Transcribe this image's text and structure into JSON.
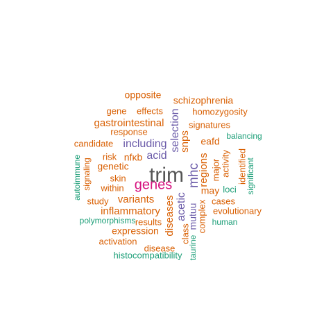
{
  "colors": {
    "dark": "#555555",
    "magenta": "#d6127f",
    "purple": "#6a5aa8",
    "orange": "#d95f02",
    "green": "#1b9e77"
  },
  "words": [
    {
      "text": "trim",
      "color": "dark",
      "rank": 1
    },
    {
      "text": "genes",
      "color": "magenta",
      "rank": 2
    },
    {
      "text": "mhc",
      "color": "purple",
      "rank": 3
    },
    {
      "text": "including",
      "color": "purple",
      "rank": 3
    },
    {
      "text": "selection",
      "color": "purple",
      "rank": 3
    },
    {
      "text": "acid",
      "color": "purple",
      "rank": 3
    },
    {
      "text": "acetic",
      "color": "purple",
      "rank": 3
    },
    {
      "text": "mutuu",
      "color": "purple",
      "rank": 3
    },
    {
      "text": "gastrointestinal",
      "color": "orange",
      "rank": 4
    },
    {
      "text": "inflammatory",
      "color": "orange",
      "rank": 4
    },
    {
      "text": "variants",
      "color": "orange",
      "rank": 4
    },
    {
      "text": "snps",
      "color": "orange",
      "rank": 4
    },
    {
      "text": "regions",
      "color": "orange",
      "rank": 4
    },
    {
      "text": "diseases",
      "color": "orange",
      "rank": 4
    },
    {
      "text": "opposite",
      "color": "orange",
      "rank": 5
    },
    {
      "text": "schizophrenia",
      "color": "orange",
      "rank": 5
    },
    {
      "text": "gene",
      "color": "orange",
      "rank": 5
    },
    {
      "text": "effects",
      "color": "orange",
      "rank": 5
    },
    {
      "text": "homozygosity",
      "color": "orange",
      "rank": 5
    },
    {
      "text": "response",
      "color": "orange",
      "rank": 5
    },
    {
      "text": "signatures",
      "color": "orange",
      "rank": 5
    },
    {
      "text": "candidate",
      "color": "orange",
      "rank": 5
    },
    {
      "text": "eafd",
      "color": "orange",
      "rank": 5
    },
    {
      "text": "risk",
      "color": "orange",
      "rank": 5
    },
    {
      "text": "nfκb",
      "color": "orange",
      "rank": 5
    },
    {
      "text": "genetic",
      "color": "orange",
      "rank": 5
    },
    {
      "text": "skin",
      "color": "orange",
      "rank": 5
    },
    {
      "text": "within",
      "color": "orange",
      "rank": 5
    },
    {
      "text": "may",
      "color": "orange",
      "rank": 5
    },
    {
      "text": "major",
      "color": "orange",
      "rank": 5
    },
    {
      "text": "activity",
      "color": "orange",
      "rank": 5
    },
    {
      "text": "identified",
      "color": "orange",
      "rank": 5
    },
    {
      "text": "study",
      "color": "orange",
      "rank": 5
    },
    {
      "text": "cases",
      "color": "orange",
      "rank": 5
    },
    {
      "text": "evolutionary",
      "color": "orange",
      "rank": 5
    },
    {
      "text": "results",
      "color": "orange",
      "rank": 5
    },
    {
      "text": "expression",
      "color": "orange",
      "rank": 5
    },
    {
      "text": "activation",
      "color": "orange",
      "rank": 5
    },
    {
      "text": "disease",
      "color": "orange",
      "rank": 5
    },
    {
      "text": "class",
      "color": "orange",
      "rank": 5
    },
    {
      "text": "complex",
      "color": "orange",
      "rank": 5
    },
    {
      "text": "signaling",
      "color": "orange",
      "rank": 5
    },
    {
      "text": "balancing",
      "color": "green",
      "rank": 6
    },
    {
      "text": "significant",
      "color": "green",
      "rank": 6
    },
    {
      "text": "autoimmune",
      "color": "green",
      "rank": 6
    },
    {
      "text": "loci",
      "color": "green",
      "rank": 6
    },
    {
      "text": "polymorphisms",
      "color": "green",
      "rank": 6
    },
    {
      "text": "human",
      "color": "green",
      "rank": 6
    },
    {
      "text": "histocompatibility",
      "color": "green",
      "rank": 6
    },
    {
      "text": "taurine",
      "color": "green",
      "rank": 6
    }
  ]
}
